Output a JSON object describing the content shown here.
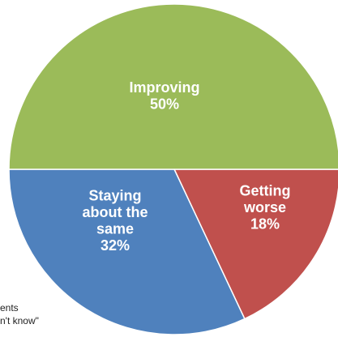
{
  "chart_data": {
    "type": "pie",
    "title": "",
    "start": "top, clockwise",
    "slices": [
      {
        "label_lines": [
          "Getting",
          "worse",
          "18%"
        ],
        "value": 18,
        "color": "#c0504d",
        "name": "Getting worse"
      },
      {
        "label_lines": [
          "Staying",
          "about the",
          "same",
          "32%"
        ],
        "value": 32,
        "color": "#4f81bd",
        "name": "Staying about the same"
      },
      {
        "label_lines": [
          "Improving",
          "50%"
        ],
        "value": 50,
        "color": "#9bbb59",
        "name": "Improving"
      }
    ],
    "legend": "none",
    "data_labels": "inside slices, white bold"
  },
  "footnote": {
    "line1": "ents",
    "line2": "n't know\""
  }
}
